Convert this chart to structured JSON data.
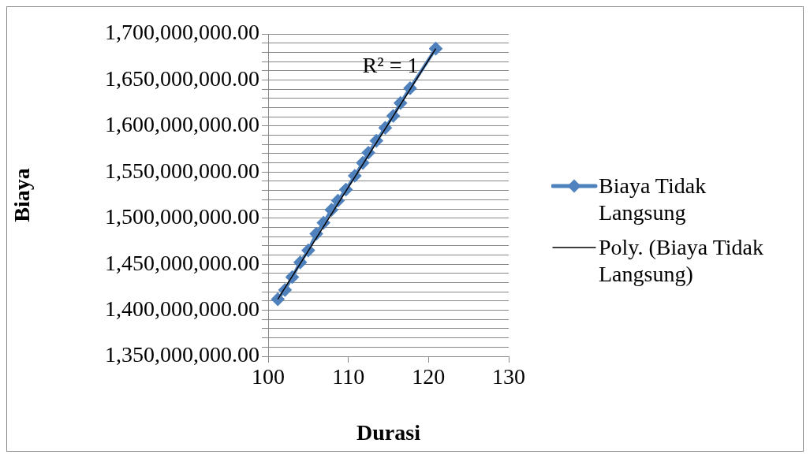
{
  "chart_data": {
    "type": "scatter",
    "xlabel": "Durasi",
    "ylabel": "Biaya",
    "legend": "right",
    "grid": "y",
    "marker": "diamond",
    "xlim": [
      100,
      130
    ],
    "xticks": [
      100,
      110,
      120,
      130
    ],
    "ylim": [
      1350000000,
      1700000000
    ],
    "yticks": [
      {
        "value": 1350000000,
        "label": "1,350,000,000.00"
      },
      {
        "value": 1360000000,
        "label": null
      },
      {
        "value": 1370000000,
        "label": null
      },
      {
        "value": 1380000000,
        "label": null
      },
      {
        "value": 1390000000,
        "label": null
      },
      {
        "value": 1400000000,
        "label": "1,400,000,000.00"
      },
      {
        "value": 1410000000,
        "label": null
      },
      {
        "value": 1420000000,
        "label": null
      },
      {
        "value": 1430000000,
        "label": null
      },
      {
        "value": 1440000000,
        "label": null
      },
      {
        "value": 1450000000,
        "label": "1,450,000,000.00"
      },
      {
        "value": 1460000000,
        "label": null
      },
      {
        "value": 1470000000,
        "label": null
      },
      {
        "value": 1480000000,
        "label": null
      },
      {
        "value": 1490000000,
        "label": null
      },
      {
        "value": 1500000000,
        "label": "1,500,000,000.00"
      },
      {
        "value": 1510000000,
        "label": null
      },
      {
        "value": 1520000000,
        "label": null
      },
      {
        "value": 1530000000,
        "label": null
      },
      {
        "value": 1540000000,
        "label": null
      },
      {
        "value": 1550000000,
        "label": "1,550,000,000.00"
      },
      {
        "value": 1560000000,
        "label": null
      },
      {
        "value": 1570000000,
        "label": null
      },
      {
        "value": 1580000000,
        "label": null
      },
      {
        "value": 1590000000,
        "label": null
      },
      {
        "value": 1600000000,
        "label": "1,600,000,000.00"
      },
      {
        "value": 1610000000,
        "label": null
      },
      {
        "value": 1620000000,
        "label": null
      },
      {
        "value": 1630000000,
        "label": null
      },
      {
        "value": 1640000000,
        "label": null
      },
      {
        "value": 1650000000,
        "label": "1,650,000,000.00"
      },
      {
        "value": 1660000000,
        "label": null
      },
      {
        "value": 1670000000,
        "label": null
      },
      {
        "value": 1680000000,
        "label": null
      },
      {
        "value": 1690000000,
        "label": null
      },
      {
        "value": 1700000000,
        "label": "1,700,000,000.00"
      }
    ],
    "annotations": [
      "R² = 1"
    ],
    "series": [
      {
        "name": "Biaya Tidak Langsung",
        "color": "#4f81bd",
        "type": "line",
        "x": [
          101.2,
          102.1,
          103.0,
          104.0,
          105.0,
          106.0,
          106.9,
          107.9,
          108.7,
          109.7,
          110.8,
          111.8,
          112.5,
          113.5,
          114.6,
          115.6,
          116.5,
          117.7,
          120.9
        ],
        "values": [
          1412000000,
          1422000000,
          1436000000,
          1452000000,
          1465000000,
          1483000000,
          1495000000,
          1509000000,
          1519000000,
          1531000000,
          1546000000,
          1560000000,
          1571000000,
          1584000000,
          1598000000,
          1611000000,
          1625000000,
          1641000000,
          1684000000
        ]
      },
      {
        "name": "Poly. (Biaya Tidak Langsung)",
        "color": "#000000",
        "type": "line",
        "marker": "none",
        "x": [
          101.2,
          120.9
        ],
        "values": [
          1412000000,
          1684000000
        ]
      }
    ]
  }
}
